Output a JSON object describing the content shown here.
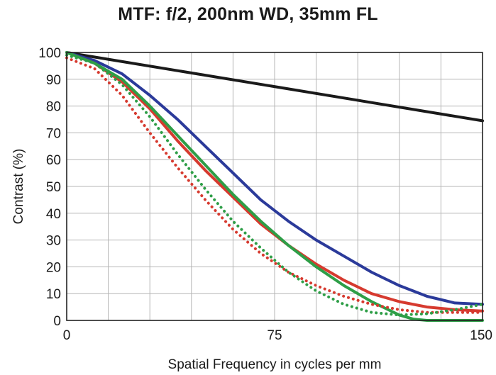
{
  "chart_data": {
    "type": "line",
    "title": "MTF: f/2, 200nm WD, 35mm FL",
    "xlabel": "Spatial Frequency in cycles per mm",
    "ylabel": "Contrast (%)",
    "xlim": [
      0,
      150
    ],
    "ylim": [
      0,
      100
    ],
    "x_ticks": [
      0,
      75,
      150
    ],
    "y_ticks": [
      0,
      10,
      20,
      30,
      40,
      50,
      60,
      70,
      80,
      90,
      100
    ],
    "x_grid": [
      0,
      15,
      30,
      45,
      60,
      75,
      90,
      105,
      120,
      135,
      150
    ],
    "grid": true,
    "legend": "none",
    "series": [
      {
        "color": "#1a1a1a",
        "style": "solid",
        "x": [
          0,
          150
        ],
        "y": [
          100,
          74.5
        ]
      },
      {
        "color": "#2b3a9a",
        "style": "solid",
        "x": [
          0,
          10,
          20,
          30,
          40,
          50,
          60,
          70,
          80,
          90,
          100,
          110,
          120,
          130,
          140,
          150
        ],
        "y": [
          100,
          97,
          92,
          84,
          75,
          65,
          55,
          45,
          37,
          30,
          24,
          18,
          13,
          9,
          6.5,
          6
        ]
      },
      {
        "color": "#d63a2f",
        "style": "solid",
        "x": [
          0,
          10,
          20,
          30,
          40,
          50,
          60,
          70,
          80,
          90,
          100,
          110,
          120,
          130,
          140,
          150
        ],
        "y": [
          100,
          96,
          89,
          79,
          67,
          56,
          46,
          36,
          28,
          21,
          15,
          10,
          7,
          5,
          4,
          3.5
        ]
      },
      {
        "color": "#2e9e47",
        "style": "solid",
        "x": [
          0,
          10,
          20,
          30,
          40,
          50,
          60,
          70,
          80,
          90,
          100,
          110,
          120,
          125,
          130,
          150
        ],
        "y": [
          100,
          96,
          90,
          80,
          69,
          58,
          47,
          37,
          28,
          20,
          13,
          7,
          2,
          0.5,
          0,
          0
        ]
      },
      {
        "color": "#d63a2f",
        "style": "dotted",
        "x": [
          0,
          10,
          20,
          30,
          40,
          50,
          60,
          70,
          80,
          90,
          100,
          110,
          120,
          130,
          140,
          150
        ],
        "y": [
          98,
          94,
          84,
          70,
          57,
          45,
          34,
          25,
          18,
          13,
          9,
          6,
          4,
          3,
          3,
          3
        ]
      },
      {
        "color": "#2e9e47",
        "style": "dotted",
        "x": [
          0,
          10,
          20,
          30,
          40,
          50,
          60,
          70,
          80,
          90,
          100,
          110,
          120,
          130,
          140,
          150
        ],
        "y": [
          99,
          96,
          88,
          76,
          62,
          49,
          37,
          27,
          18,
          11,
          6,
          3,
          2,
          2.5,
          4,
          6
        ]
      }
    ]
  }
}
